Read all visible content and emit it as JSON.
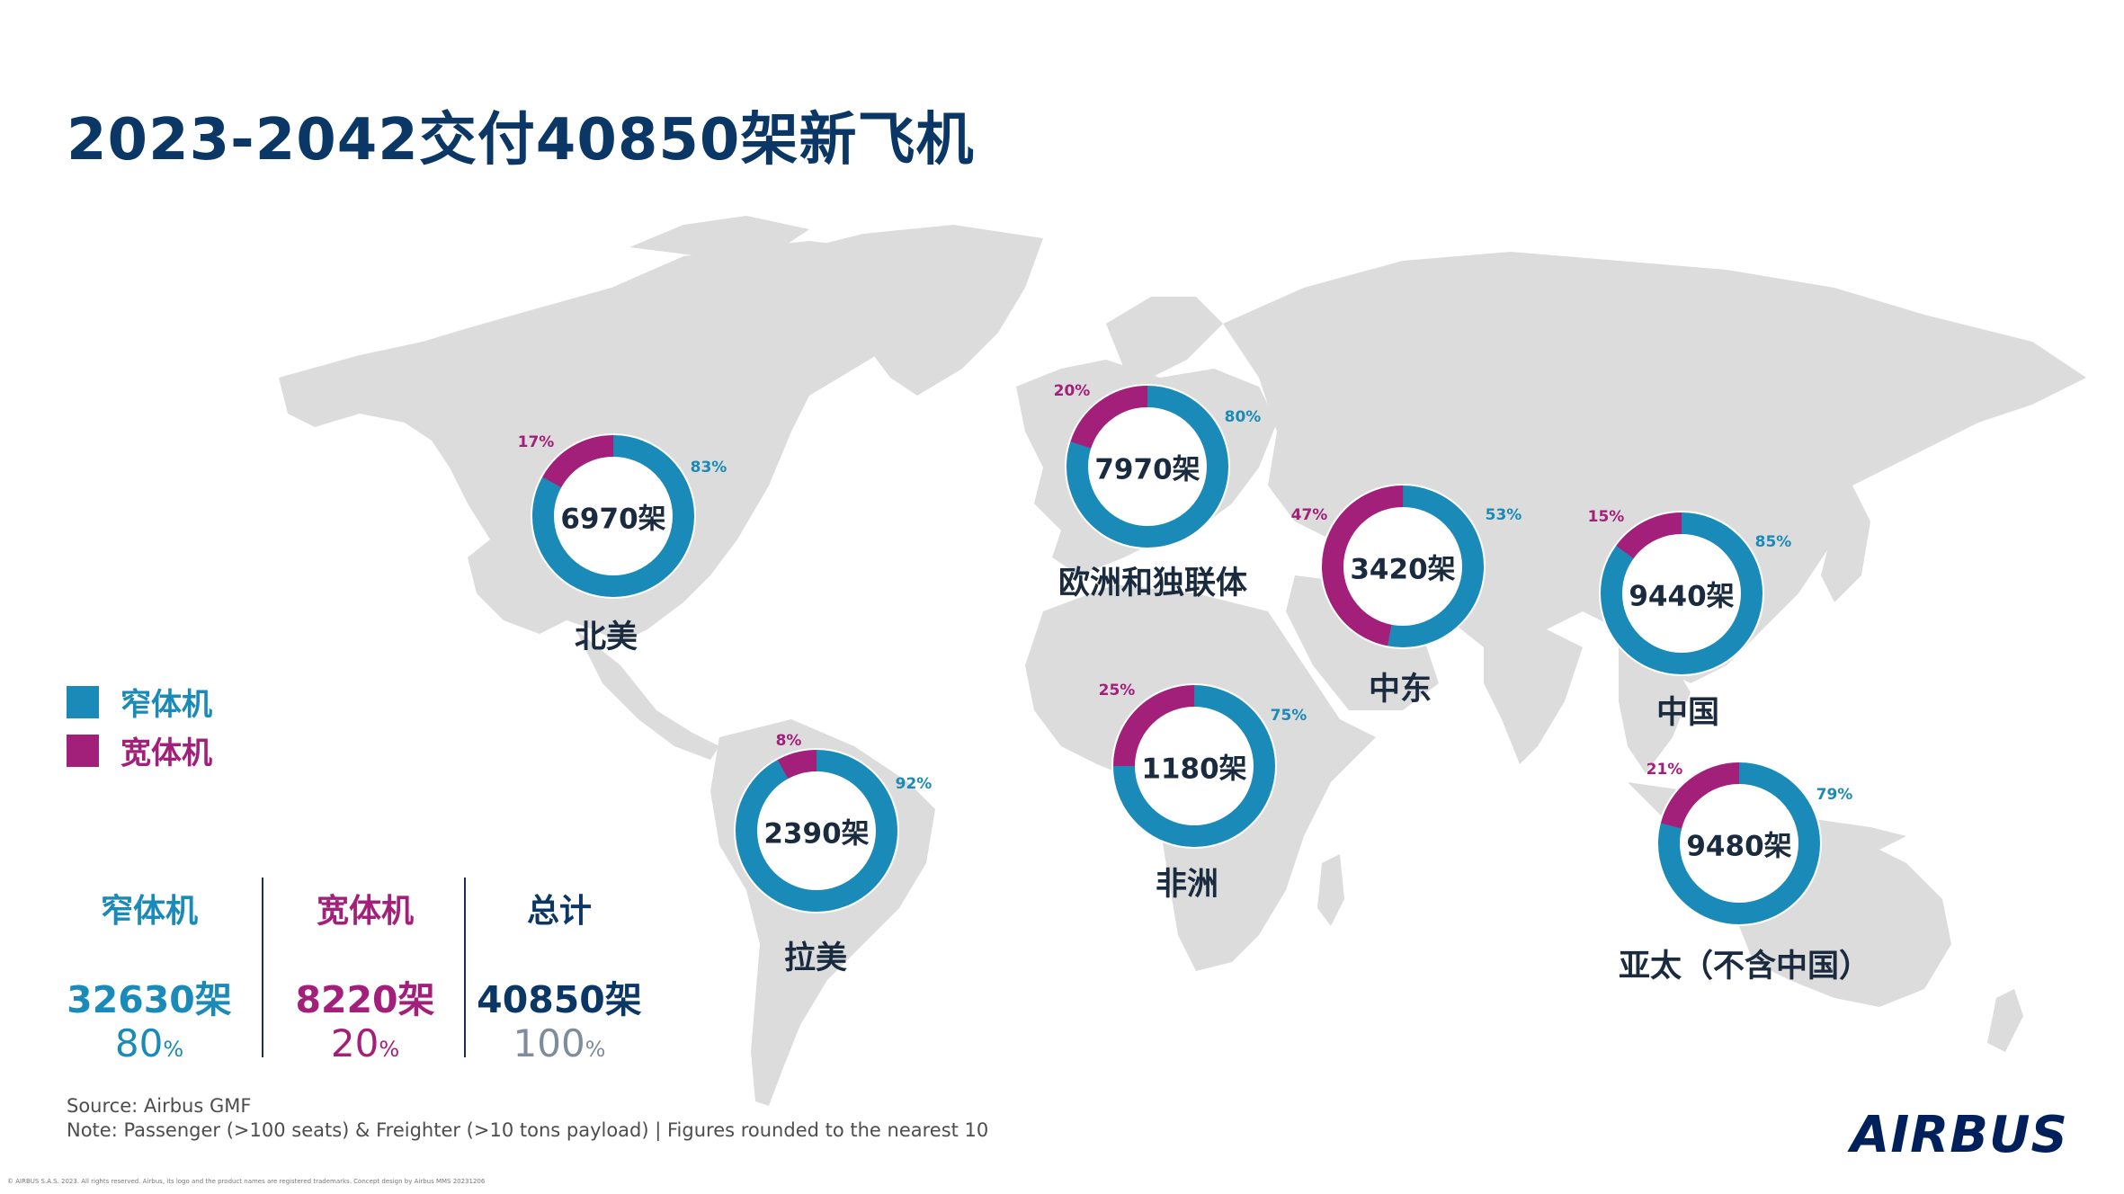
{
  "title": "2023-2042交付40850架新飞机",
  "colors": {
    "narrowbody": "#1a8ab8",
    "widebody": "#a3207a",
    "map": "#dcdcdc",
    "title": "#0b3766"
  },
  "legend": [
    {
      "label": "窄体机",
      "color": "#1a8ab8"
    },
    {
      "label": "宽体机",
      "color": "#a3207a"
    }
  ],
  "regions": [
    {
      "name": "北美",
      "total_label": "6970架",
      "narrow_pct": 83,
      "wide_pct": 17,
      "narrow_label": "83%",
      "wide_label": "17%"
    },
    {
      "name": "欧洲和独联体",
      "total_label": "7970架",
      "narrow_pct": 80,
      "wide_pct": 20,
      "narrow_label": "80%",
      "wide_label": "20%"
    },
    {
      "name": "中东",
      "total_label": "3420架",
      "narrow_pct": 53,
      "wide_pct": 47,
      "narrow_label": "53%",
      "wide_label": "47%"
    },
    {
      "name": "中国",
      "total_label": "9440架",
      "narrow_pct": 85,
      "wide_pct": 15,
      "narrow_label": "85%",
      "wide_label": "15%"
    },
    {
      "name": "非洲",
      "total_label": "1180架",
      "narrow_pct": 75,
      "wide_pct": 25,
      "narrow_label": "75%",
      "wide_label": "25%"
    },
    {
      "name": "拉美",
      "total_label": "2390架",
      "narrow_pct": 92,
      "wide_pct": 8,
      "narrow_label": "92%",
      "wide_label": "8%"
    },
    {
      "name": "亚太（不含中国）",
      "total_label": "9480架",
      "narrow_pct": 79,
      "wide_pct": 21,
      "narrow_label": "79%",
      "wide_label": "21%"
    }
  ],
  "summary": [
    {
      "head": "窄体机",
      "count": "32630架",
      "pct": "80",
      "unit": "%",
      "color": "#1a8ab8"
    },
    {
      "head": "宽体机",
      "count": "8220架",
      "pct": "20",
      "unit": "%",
      "color": "#a3207a"
    },
    {
      "head": "总计",
      "count": "40850架",
      "pct": "100",
      "unit": "%",
      "color": "#0b3766"
    }
  ],
  "source": "Source: Airbus GMF",
  "note": "Note: Passenger (>100 seats) & Freighter (>10 tons payload) | Figures rounded to the nearest 10",
  "copyright": "© AIRBUS S.A.S. 2023. All rights reserved. Airbus, its logo and the product names are registered trademarks. Concept design by Airbus MMS 20231206",
  "logo": "AIRBUS"
}
